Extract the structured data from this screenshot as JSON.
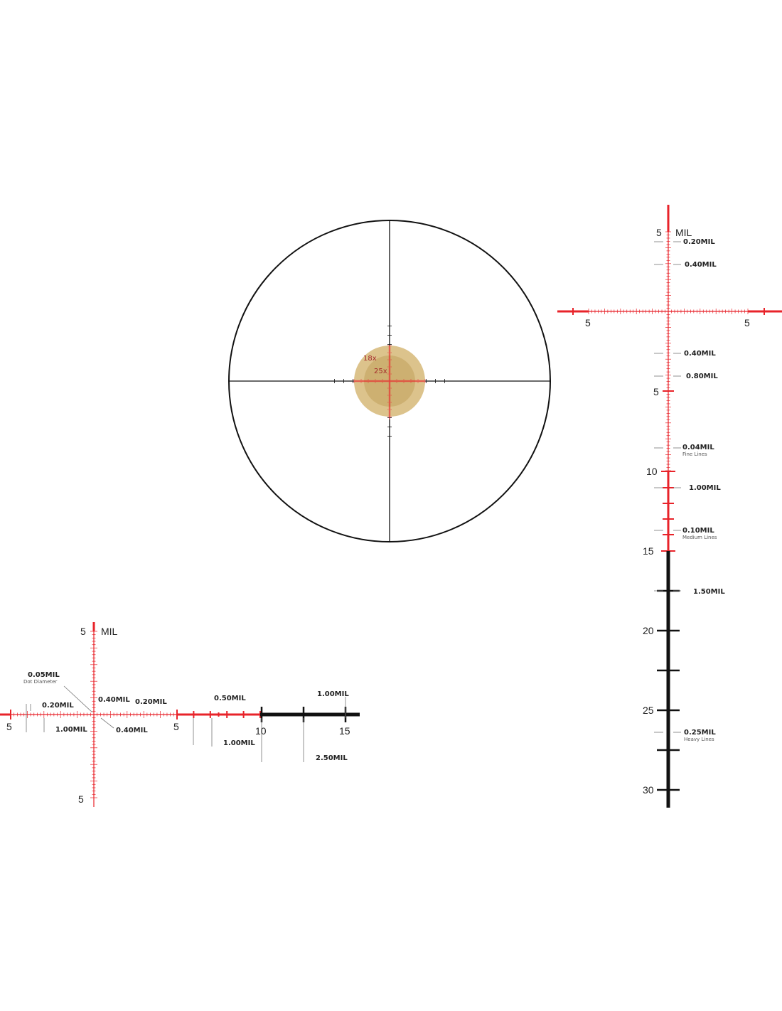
{
  "colors": {
    "reticle_red": "#e8232a",
    "reticle_black": "#111111",
    "magnify_outer": "#dcc38c",
    "magnify_inner": "#cdb071",
    "magnify_text": "#a3282a"
  },
  "overview": {
    "mag_outer_label": "18x",
    "mag_inner_label": "25x"
  },
  "right_panel": {
    "unit": "MIL",
    "top_number": "5",
    "horizontal_numbers": [
      "5",
      "5"
    ],
    "vertical_numbers": [
      "5",
      "10",
      "15",
      "20",
      "25",
      "30"
    ],
    "callouts": [
      {
        "value": "0.20MIL",
        "note": ""
      },
      {
        "value": "0.40MIL",
        "note": ""
      },
      {
        "value": "0.40MIL",
        "note": ""
      },
      {
        "value": "0.80MIL",
        "note": ""
      },
      {
        "value": "0.04MIL",
        "note": "Fine Lines"
      },
      {
        "value": "1.00MIL",
        "note": ""
      },
      {
        "value": "0.10MIL",
        "note": "Medium Lines"
      },
      {
        "value": "1.50MIL",
        "note": ""
      },
      {
        "value": "0.25MIL",
        "note": "Heavy Lines"
      }
    ]
  },
  "left_panel": {
    "unit": "MIL",
    "top_number": "5",
    "bottom_number": "5",
    "horizontal_numbers": [
      "5",
      "5",
      "10",
      "15"
    ],
    "callouts": [
      {
        "value": "0.05MIL",
        "note": "Dot Diameter"
      },
      {
        "value": "0.20MIL",
        "note": ""
      },
      {
        "value": "1.00MIL",
        "note": ""
      },
      {
        "value": "0.40MIL",
        "note": ""
      },
      {
        "value": "0.40MIL",
        "note": ""
      },
      {
        "value": "0.20MIL",
        "note": ""
      },
      {
        "value": "0.50MIL",
        "note": ""
      },
      {
        "value": "1.00MIL",
        "note": ""
      },
      {
        "value": "1.00MIL",
        "note": ""
      },
      {
        "value": "2.50MIL",
        "note": ""
      }
    ]
  }
}
